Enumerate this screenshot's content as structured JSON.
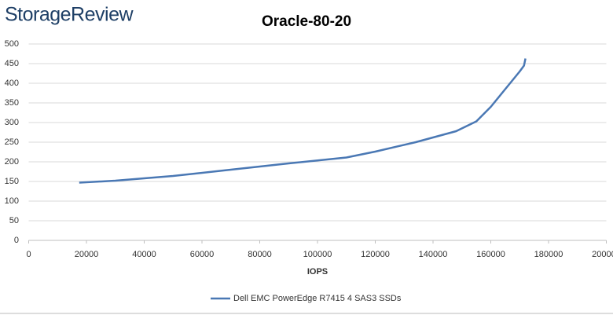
{
  "logo": "StorageReview",
  "chart_data": {
    "type": "line",
    "title": "Oracle-80-20",
    "xlabel": "IOPS",
    "x": [
      17500,
      30000,
      50000,
      70000,
      90000,
      110000,
      120000,
      134000,
      148000,
      155000,
      160000,
      165000,
      170000,
      171500,
      172000
    ],
    "series": [
      {
        "name": "Dell EMC PowerEdge R7415 4 SAS3 SSDs",
        "color": "#4a78b4",
        "values": [
          147,
          152,
          164,
          180,
          196,
          211,
          226,
          250,
          278,
          303,
          340,
          385,
          430,
          445,
          463
        ]
      }
    ],
    "xlim": [
      0,
      200000
    ],
    "xticks": [
      0,
      20000,
      40000,
      60000,
      80000,
      100000,
      120000,
      140000,
      160000,
      180000,
      200000
    ],
    "ylim": [
      0,
      500
    ],
    "yticks": [
      0,
      50,
      100,
      150,
      200,
      250,
      300,
      350,
      400,
      450,
      500
    ],
    "grid": true,
    "legend": "bottom"
  }
}
